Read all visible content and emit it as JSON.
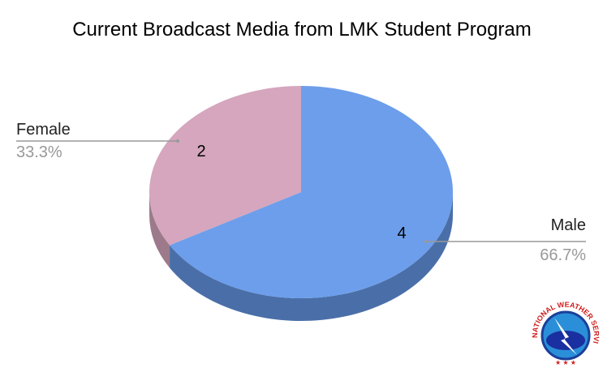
{
  "chart_data": {
    "type": "pie",
    "style": "3d",
    "title": "Current Broadcast Media from LMK Student Program",
    "slices": [
      {
        "label": "Male",
        "value": 4,
        "percent_label": "66.7%",
        "color": "#6d9eeb",
        "side_color": "#4a6fa8"
      },
      {
        "label": "Female",
        "value": 2,
        "percent_label": "33.3%",
        "color": "#d5a6bd",
        "side_color": "#9c7a8b"
      }
    ],
    "legend": "none"
  },
  "logo": {
    "text": "NATIONAL WEATHER SERVICE"
  }
}
